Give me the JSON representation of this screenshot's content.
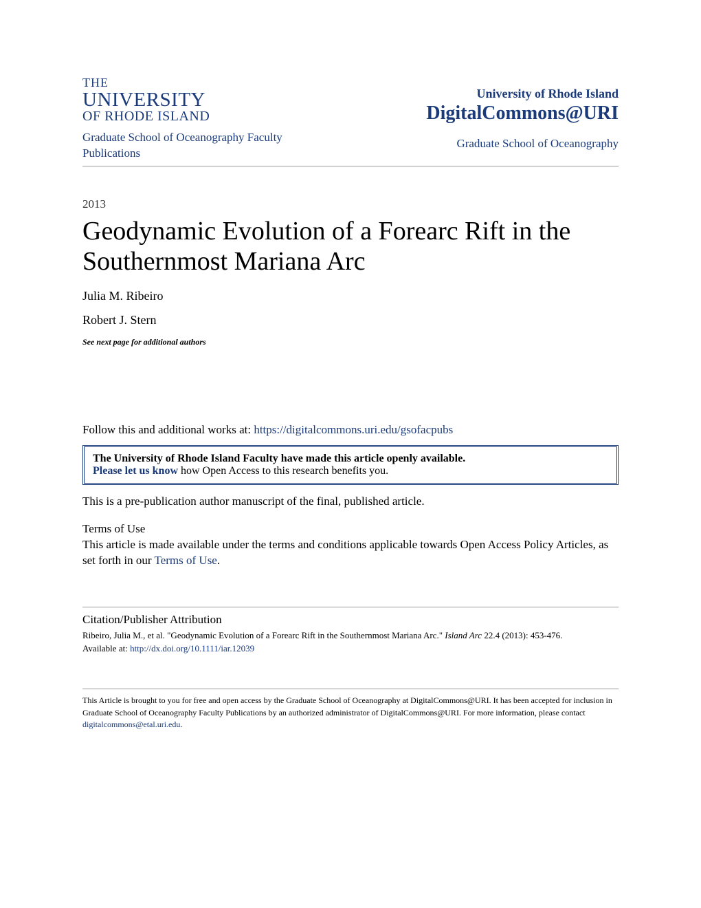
{
  "header": {
    "logo_the": "THE",
    "logo_university": "UNIVERSITY",
    "logo_ofri": "OF RHODE ISLAND",
    "uri_name": "University of Rhode Island",
    "digital_commons": "DigitalCommons@URI"
  },
  "nav": {
    "left": "Graduate School of Oceanography Faculty Publications",
    "right": "Graduate School of Oceanography"
  },
  "year": "2013",
  "title": "Geodynamic Evolution of a Forearc Rift in the Southernmost Mariana Arc",
  "authors": [
    "Julia M. Ribeiro",
    "Robert J. Stern"
  ],
  "see_next": "See next page for additional authors",
  "follow": {
    "prefix": "Follow this and additional works at: ",
    "url": "https://digitalcommons.uri.edu/gsofacpubs"
  },
  "open_access_box": {
    "line1": "The University of Rhode Island Faculty have made this article openly available.",
    "link_text": "Please let us know",
    "line2_rest": " how Open Access to this research benefits you."
  },
  "prepub": "This is a pre-publication author manuscript of the final, published article.",
  "terms": {
    "heading": "Terms of Use",
    "body_prefix": "This article is made available under the terms and conditions applicable towards Open Access Policy Articles, as set forth in our ",
    "link_text": "Terms of Use",
    "body_suffix": "."
  },
  "citation": {
    "heading": "Citation/Publisher Attribution",
    "body_prefix": "Ribeiro, Julia M., et al. \"Geodynamic Evolution of a Forearc Rift in the Southernmost Mariana Arc.\" ",
    "journal": "Island Arc",
    "body_suffix": " 22.4 (2013): 453-476.",
    "available_label": "Available at: ",
    "doi_url": "http://dx.doi.org/10.1111/iar.12039"
  },
  "footer": {
    "text_prefix": "This Article is brought to you for free and open access by the Graduate School of Oceanography at DigitalCommons@URI. It has been accepted for inclusion in Graduate School of Oceanography Faculty Publications by an authorized administrator of DigitalCommons@URI. For more information, please contact ",
    "email": "digitalcommons@etal.uri.edu",
    "text_suffix": "."
  },
  "colors": {
    "brand_blue": "#1a3a7a",
    "text_black": "#000000",
    "divider_gray": "#999999",
    "background": "#ffffff"
  },
  "typography": {
    "title_fontsize": 38,
    "body_fontsize": 17,
    "small_fontsize": 13,
    "footer_fontsize": 12,
    "font_family": "Georgia, serif"
  }
}
